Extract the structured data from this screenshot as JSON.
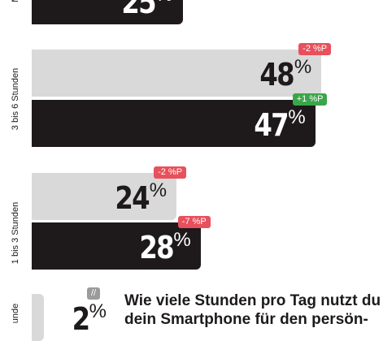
{
  "colors": {
    "previous_bar": "#d9d9d9",
    "current_bar": "#1e1a1b",
    "text_dark": "#1e1a1b",
    "text_light": "#ffffff",
    "badge_negative": "#e8505b",
    "badge_positive": "#3aa64a",
    "badge_neutral": "#9b9b9b"
  },
  "question": "Wie viele Stunden pro Tag nutzt du\ndein Smartphone für den persön-",
  "chart_data": {
    "type": "bar",
    "orientation": "horizontal",
    "unit": "%",
    "categories": [
      {
        "label": "Meh",
        "bars": [
          {
            "kind": "current",
            "value": 25,
            "value_label": "25",
            "unit": "%",
            "change": ""
          }
        ]
      },
      {
        "label": "3 bis 6 Stunden",
        "bars": [
          {
            "kind": "previous",
            "value": 48,
            "value_label": "48",
            "unit": "%",
            "change": "-2 %P",
            "change_color": "#e8505b"
          },
          {
            "kind": "current",
            "value": 47,
            "value_label": "47",
            "unit": "%",
            "change": "+1 %P",
            "change_color": "#3aa64a"
          }
        ]
      },
      {
        "label": "1 bis 3 Stunden",
        "bars": [
          {
            "kind": "previous",
            "value": 24,
            "value_label": "24",
            "unit": "%",
            "change": "-2 %P",
            "change_color": "#e8505b"
          },
          {
            "kind": "current",
            "value": 28,
            "value_label": "28",
            "unit": "%",
            "change": "-7 %P",
            "change_color": "#e8505b"
          }
        ]
      },
      {
        "label": "unde",
        "bars": [
          {
            "kind": "previous",
            "value": 2,
            "value_label": "2",
            "unit": "%",
            "change": "//",
            "change_color": "#9b9b9b"
          }
        ]
      }
    ]
  }
}
